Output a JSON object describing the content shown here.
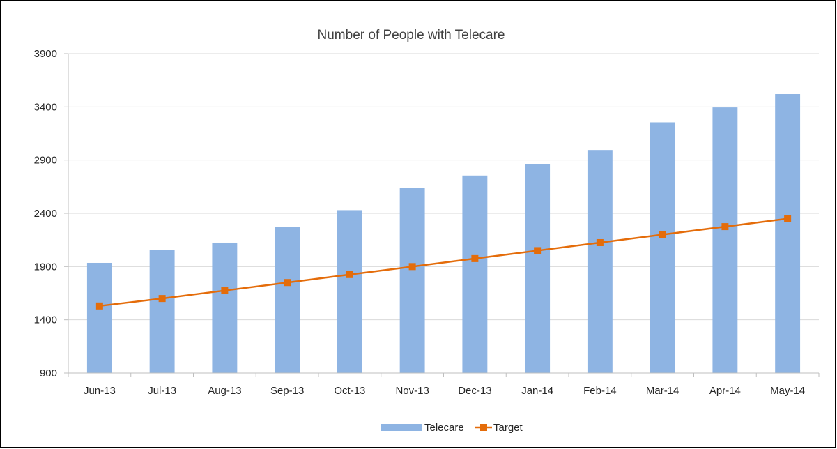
{
  "chart_data": {
    "type": "bar",
    "title": "Number of People with Telecare",
    "xlabel": "",
    "ylabel": "",
    "categories": [
      "Jun-13",
      "Jul-13",
      "Aug-13",
      "Sep-13",
      "Oct-13",
      "Nov-13",
      "Dec-13",
      "Jan-14",
      "Feb-14",
      "Mar-14",
      "Apr-14",
      "May-14"
    ],
    "yticks": [
      "900",
      "1400",
      "1900",
      "2400",
      "2900",
      "3400",
      "3900"
    ],
    "ylim": [
      900,
      3900
    ],
    "grid": true,
    "legend_position": "bottom",
    "series": [
      {
        "name": "Telecare",
        "type": "bar",
        "color": "#8EB4E3",
        "values": [
          1935,
          2055,
          2125,
          2275,
          2430,
          2640,
          2755,
          2865,
          2995,
          3255,
          3395,
          3520
        ]
      },
      {
        "name": "Target",
        "type": "line",
        "color": "#E46C0A",
        "values": [
          1530,
          1600,
          1675,
          1750,
          1825,
          1900,
          1975,
          2050,
          2125,
          2200,
          2275,
          2350
        ]
      }
    ]
  }
}
